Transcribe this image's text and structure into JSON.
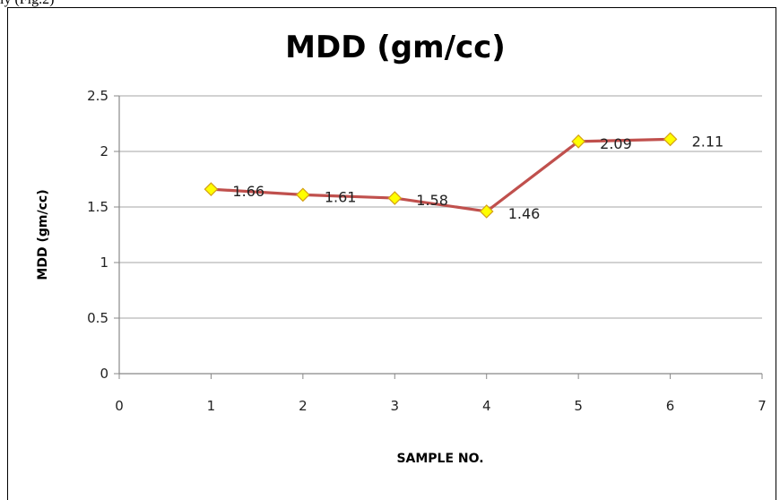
{
  "page": {
    "top_caption": "ly (Fig.2)"
  },
  "chart_data": {
    "type": "line",
    "title": "MDD (gm/cc)",
    "xlabel": "SAMPLE NO.",
    "ylabel": "MDD (gm/cc)",
    "xlim": [
      0,
      7
    ],
    "ylim": [
      0,
      2.5
    ],
    "x_ticks": [
      "0",
      "1",
      "2",
      "3",
      "4",
      "5",
      "6",
      "7"
    ],
    "y_ticks": [
      "0",
      "0.5",
      "1",
      "1.5",
      "2",
      "2.5"
    ],
    "grid": "horizontal",
    "legend": "none",
    "series": [
      {
        "x": [
          1,
          2,
          3,
          4,
          5,
          6
        ],
        "values": [
          1.66,
          1.61,
          1.58,
          1.46,
          2.09,
          2.11
        ],
        "data_labels": [
          "1.66",
          "1.61",
          "1.58",
          "1.46",
          "2.09",
          "2.11"
        ],
        "line_color": "#C0504D",
        "marker_fill": "#FFFF00",
        "marker_stroke": "#D4A017"
      }
    ]
  }
}
